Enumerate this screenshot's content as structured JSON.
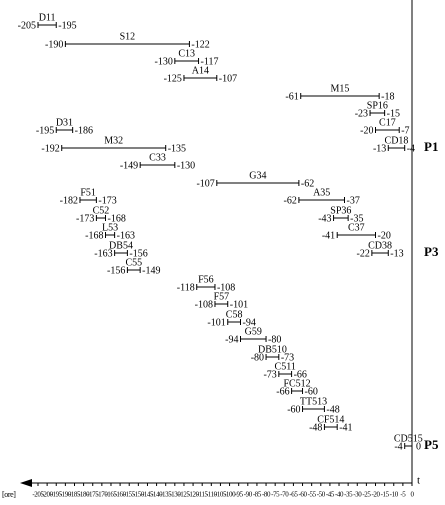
{
  "chart_data": {
    "type": "range",
    "xlabel": "[ore]",
    "x_end_label": "t",
    "xlim": [
      -205,
      0
    ],
    "xticks": [
      -205,
      -200,
      -195,
      -190,
      -185,
      -180,
      -175,
      -170,
      -165,
      -160,
      -155,
      -150,
      -145,
      -140,
      -135,
      -130,
      -125,
      -120,
      -115,
      -110,
      -105,
      -100,
      -95,
      -90,
      -85,
      -80,
      -75,
      -70,
      -65,
      -60,
      -55,
      -50,
      -45,
      -40,
      -35,
      -30,
      -25,
      -20,
      -15,
      -10,
      -5,
      0
    ],
    "color": "#000000",
    "series": [
      {
        "name": "D11",
        "start": -205,
        "end": -195
      },
      {
        "name": "S12",
        "start": -190,
        "end": -122
      },
      {
        "name": "C13",
        "start": -130,
        "end": -117
      },
      {
        "name": "A14",
        "start": -125,
        "end": -107
      },
      {
        "name": "M15",
        "start": -61,
        "end": -18
      },
      {
        "name": "SP16",
        "start": -23,
        "end": -15
      },
      {
        "name": "C17",
        "start": -20,
        "end": -7
      },
      {
        "name": "CD18",
        "start": -13,
        "end": -4
      },
      {
        "name": "D31",
        "start": -195,
        "end": -186
      },
      {
        "name": "M32",
        "start": -192,
        "end": -135
      },
      {
        "name": "C33",
        "start": -149,
        "end": -130
      },
      {
        "name": "G34",
        "start": -107,
        "end": -62
      },
      {
        "name": "A35",
        "start": -62,
        "end": -37
      },
      {
        "name": "SP36",
        "start": -43,
        "end": -35
      },
      {
        "name": "C37",
        "start": -41,
        "end": -20
      },
      {
        "name": "CD38",
        "start": -22,
        "end": -13
      },
      {
        "name": "F51",
        "start": -182,
        "end": -173
      },
      {
        "name": "C52",
        "start": -173,
        "end": -168
      },
      {
        "name": "L53",
        "start": -168,
        "end": -163
      },
      {
        "name": "DB54",
        "start": -163,
        "end": -156
      },
      {
        "name": "C55",
        "start": -156,
        "end": -149
      },
      {
        "name": "F56",
        "start": -118,
        "end": -108
      },
      {
        "name": "F57",
        "start": -108,
        "end": -101
      },
      {
        "name": "C58",
        "start": -101,
        "end": -94
      },
      {
        "name": "G59",
        "start": -94,
        "end": -80
      },
      {
        "name": "DB510",
        "start": -80,
        "end": -73
      },
      {
        "name": "C511",
        "start": -73,
        "end": -66
      },
      {
        "name": "FC512",
        "start": -66,
        "end": -60
      },
      {
        "name": "TT513",
        "start": -60,
        "end": -48
      },
      {
        "name": "CF514",
        "start": -48,
        "end": -41
      },
      {
        "name": "CD515",
        "start": -4,
        "end": 0
      }
    ],
    "groups": [
      "P1",
      "P3",
      "P5"
    ]
  }
}
